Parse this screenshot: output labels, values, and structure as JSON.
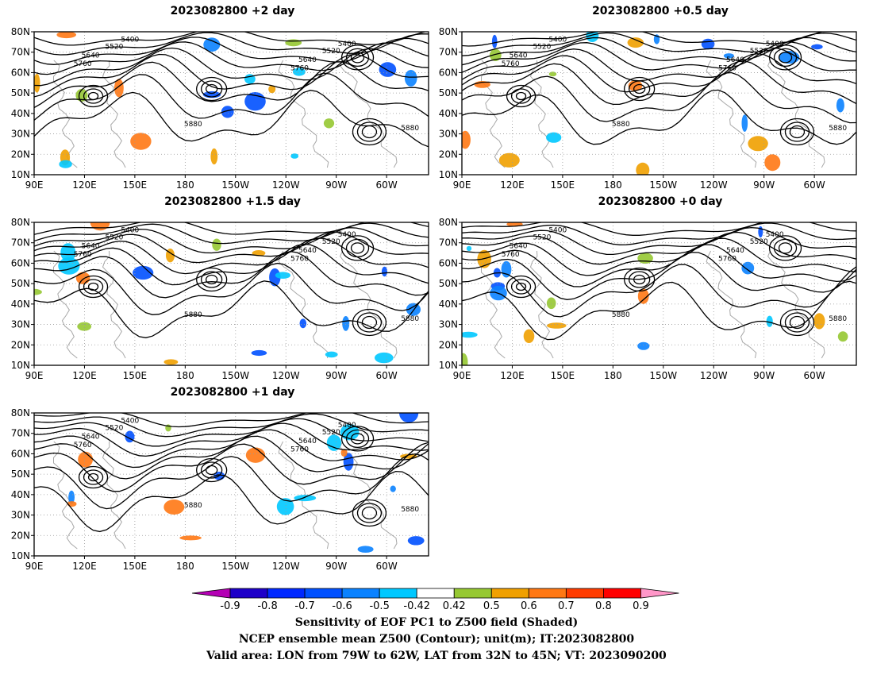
{
  "panels": [
    {
      "id": "p2day",
      "title": "2023082800 +2 day"
    },
    {
      "id": "p05day",
      "title": "2023082800 +0.5 day"
    },
    {
      "id": "p15day",
      "title": "2023082800 +1.5 day"
    },
    {
      "id": "p0day",
      "title": "2023082800 +0 day"
    },
    {
      "id": "p1day",
      "title": "2023082800 +1 day"
    }
  ],
  "lon_labels": [
    "90E",
    "120E",
    "150E",
    "180",
    "150W",
    "120W",
    "90W",
    "60W"
  ],
  "lat_labels": [
    "80N",
    "70N",
    "60N",
    "50N",
    "40N",
    "30N",
    "20N",
    "10N"
  ],
  "contour_labels": [
    "5400",
    "5520",
    "5640",
    "5760",
    "5880"
  ],
  "colorbar": {
    "ticks": [
      "-0.9",
      "-0.8",
      "-0.7",
      "-0.6",
      "-0.5",
      "-0.42",
      "0.42",
      "0.5",
      "0.6",
      "0.7",
      "0.8",
      "0.9"
    ],
    "colors": [
      "#b400b4",
      "#1e00c8",
      "#0028ff",
      "#0050ff",
      "#0a82ff",
      "#00c8ff",
      "#ffffff",
      "#96c832",
      "#f0a000",
      "#ff7814",
      "#ff3c00",
      "#ff0000",
      "#ff96c8"
    ]
  },
  "footer": {
    "line1": "Sensitivity of EOF PC1 to Z500 field (Shaded)",
    "line2": "NCEP ensemble mean Z500 (Contour); unit(m); IT:2023082800",
    "line3": "Valid area: LON from 79W to 62W, LAT from 32N to 45N; VT: 2023090200"
  }
}
